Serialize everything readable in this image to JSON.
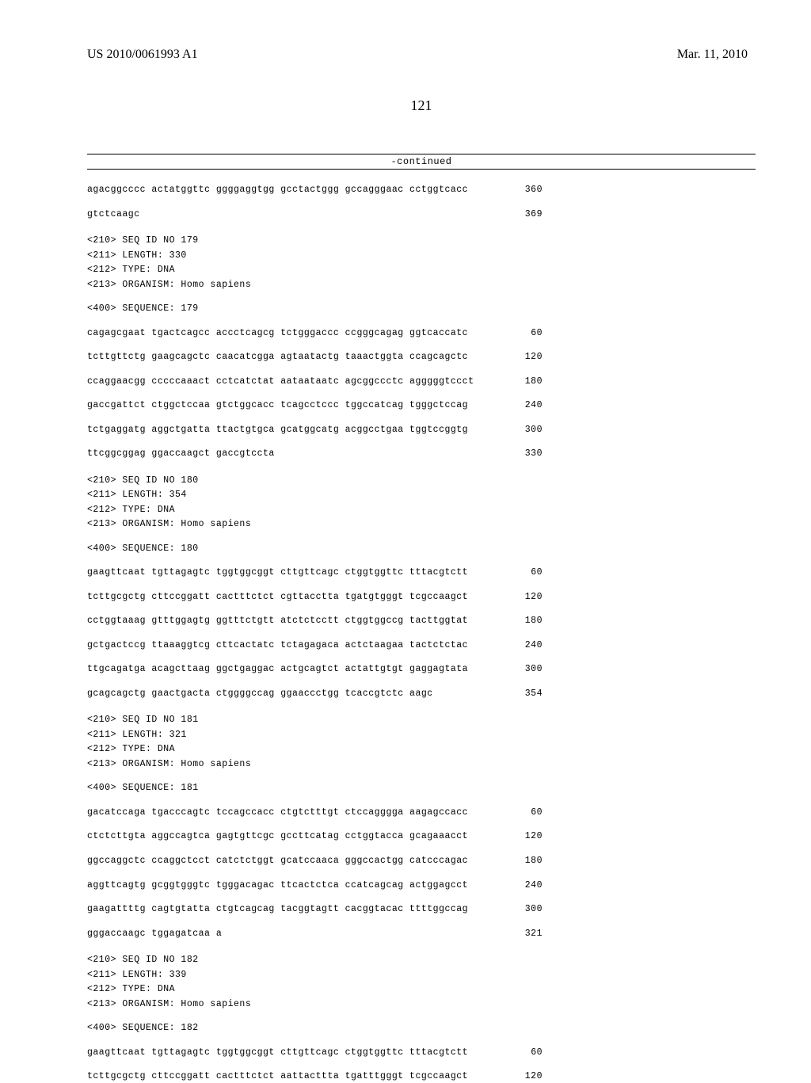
{
  "header": {
    "publication_number": "US 2010/0061993 A1",
    "publication_date": "Mar. 11, 2010"
  },
  "page_number": "121",
  "continued_label": "-continued",
  "sequences": {
    "seq178_tail": {
      "lines": [
        {
          "text": "agacggcccc actatggttc ggggaggtgg gcctactggg gccagggaac cctggtcacc",
          "num": "360"
        },
        {
          "text": "gtctcaagc",
          "num": "369"
        }
      ]
    },
    "seq179": {
      "header": {
        "id": "<210> SEQ ID NO 179",
        "length": "<211> LENGTH: 330",
        "type": "<212> TYPE: DNA",
        "organism": "<213> ORGANISM: Homo sapiens",
        "sequence_label": "<400> SEQUENCE: 179"
      },
      "lines": [
        {
          "text": "cagagcgaat tgactcagcc accctcagcg tctgggaccc ccgggcagag ggtcaccatc",
          "num": "60"
        },
        {
          "text": "tcttgttctg gaagcagctc caacatcgga agtaatactg taaactggta ccagcagctc",
          "num": "120"
        },
        {
          "text": "ccaggaacgg cccccaaact cctcatctat aataataatc agcggccctc agggggtccct",
          "num": "180"
        },
        {
          "text": "gaccgattct ctggctccaa gtctggcacc tcagcctccc tggccatcag tgggctccag",
          "num": "240"
        },
        {
          "text": "tctgaggatg aggctgatta ttactgtgca gcatggcatg acggcctgaa tggtccggtg",
          "num": "300"
        },
        {
          "text": "ttcggcggag ggaccaagct gaccgtccta",
          "num": "330"
        }
      ]
    },
    "seq180": {
      "header": {
        "id": "<210> SEQ ID NO 180",
        "length": "<211> LENGTH: 354",
        "type": "<212> TYPE: DNA",
        "organism": "<213> ORGANISM: Homo sapiens",
        "sequence_label": "<400> SEQUENCE: 180"
      },
      "lines": [
        {
          "text": "gaagttcaat tgttagagtc tggtggcggt cttgttcagc ctggtggttc tttacgtctt",
          "num": "60"
        },
        {
          "text": "tcttgcgctg cttccggatt cactttctct cgttacctta tgatgtgggt tcgccaagct",
          "num": "120"
        },
        {
          "text": "cctggtaaag gtttggagtg ggtttctgtt atctctcctt ctggtggccg tacttggtat",
          "num": "180"
        },
        {
          "text": "gctgactccg ttaaaggtcg cttcactatc tctagagaca actctaagaa tactctctac",
          "num": "240"
        },
        {
          "text": "ttgcagatga acagcttaag ggctgaggac actgcagtct actattgtgt gaggagtata",
          "num": "300"
        },
        {
          "text": "gcagcagctg gaactgacta ctggggccag ggaaccctgg tcaccgtctc aagc",
          "num": "354"
        }
      ]
    },
    "seq181": {
      "header": {
        "id": "<210> SEQ ID NO 181",
        "length": "<211> LENGTH: 321",
        "type": "<212> TYPE: DNA",
        "organism": "<213> ORGANISM: Homo sapiens",
        "sequence_label": "<400> SEQUENCE: 181"
      },
      "lines": [
        {
          "text": "gacatccaga tgacccagtc tccagccacc ctgtctttgt ctccagggga aagagccacc",
          "num": "60"
        },
        {
          "text": "ctctcttgta aggccagtca gagtgttcgc gccttcatag cctggtacca gcagaaacct",
          "num": "120"
        },
        {
          "text": "ggccaggctc ccaggctcct catctctggt gcatccaaca gggccactgg catcccagac",
          "num": "180"
        },
        {
          "text": "aggttcagtg gcggtgggtc tgggacagac ttcactctca ccatcagcag actggagcct",
          "num": "240"
        },
        {
          "text": "gaagattttg cagtgtatta ctgtcagcag tacggtagtt cacggtacac ttttggccag",
          "num": "300"
        },
        {
          "text": "gggaccaagc tggagatcaa a",
          "num": "321"
        }
      ]
    },
    "seq182": {
      "header": {
        "id": "<210> SEQ ID NO 182",
        "length": "<211> LENGTH: 339",
        "type": "<212> TYPE: DNA",
        "organism": "<213> ORGANISM: Homo sapiens",
        "sequence_label": "<400> SEQUENCE: 182"
      },
      "lines": [
        {
          "text": "gaagttcaat tgttagagtc tggtggcggt cttgttcagc ctggtggttc tttacgtctt",
          "num": "60"
        },
        {
          "text": "tcttgcgctg cttccggatt cactttctct aattacttta tgatttgggt tcgccaagct",
          "num": "120"
        }
      ]
    }
  }
}
